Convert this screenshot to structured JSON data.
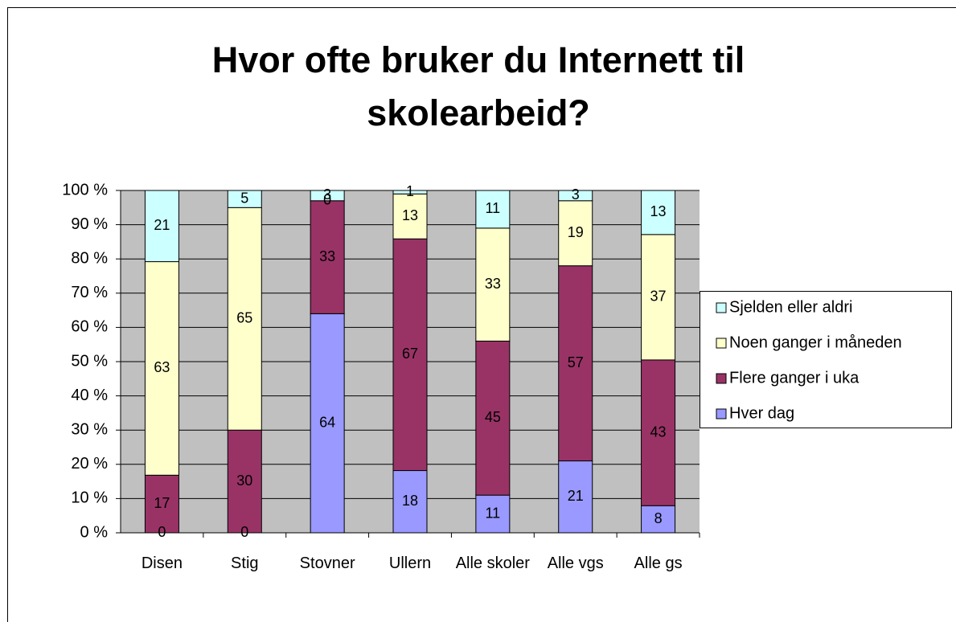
{
  "chart_data": {
    "type": "bar",
    "stack": "percent",
    "title": "Hvor ofte bruker du Internett til skolearbeid?",
    "categories": [
      "Disen",
      "Stig",
      "Stovner",
      "Ullern",
      "Alle skoler",
      "Alle vgs",
      "Alle gs"
    ],
    "series": [
      {
        "name": "Hver dag",
        "color": "#9999ff",
        "values": [
          0,
          0,
          64,
          18,
          11,
          21,
          8
        ]
      },
      {
        "name": "Flere ganger i uka",
        "color": "#993366",
        "values": [
          17,
          30,
          33,
          67,
          45,
          57,
          43
        ]
      },
      {
        "name": "Noen ganger i måneden",
        "color": "#ffffcc",
        "values": [
          63,
          65,
          0,
          13,
          33,
          19,
          37
        ]
      },
      {
        "name": "Sjelden eller aldri",
        "color": "#ccffff",
        "values": [
          21,
          5,
          3,
          1,
          11,
          3,
          13
        ]
      }
    ],
    "ylim": [
      0,
      100
    ],
    "yticks": [
      {
        "value": 0,
        "label": "0 %"
      },
      {
        "value": 10,
        "label": "10 %"
      },
      {
        "value": 20,
        "label": "20 %"
      },
      {
        "value": 30,
        "label": "30 %"
      },
      {
        "value": 40,
        "label": "40 %"
      },
      {
        "value": 50,
        "label": "50 %"
      },
      {
        "value": 60,
        "label": "60 %"
      },
      {
        "value": 70,
        "label": "70 %"
      },
      {
        "value": 80,
        "label": "80 %"
      },
      {
        "value": 90,
        "label": "90 %"
      },
      {
        "value": 100,
        "label": "100 %"
      }
    ],
    "grid": true,
    "plot_background": "#c0c0c0",
    "legend": "right"
  }
}
